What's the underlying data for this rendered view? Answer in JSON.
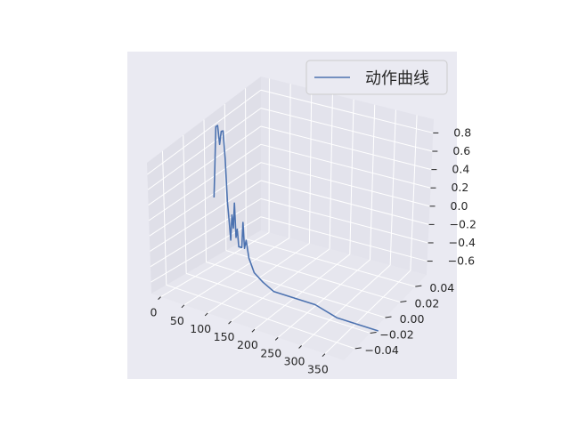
{
  "chart_data": {
    "type": "line",
    "projection": "3d",
    "series": [
      {
        "name": "动作曲线",
        "color": "#4c72b0",
        "points": [
          [
            0,
            0.0,
            0.05
          ],
          [
            3,
            0.0,
            0.45
          ],
          [
            6,
            0.0,
            0.9
          ],
          [
            10,
            0.0,
            0.92
          ],
          [
            14,
            0.0,
            0.7
          ],
          [
            18,
            0.0,
            0.86
          ],
          [
            22,
            0.0,
            0.87
          ],
          [
            26,
            0.0,
            0.55
          ],
          [
            30,
            0.0,
            0.05
          ],
          [
            34,
            0.0,
            -0.2
          ],
          [
            37,
            0.0,
            -0.4
          ],
          [
            40,
            0.0,
            -0.1
          ],
          [
            43,
            0.0,
            -0.25
          ],
          [
            46,
            0.0,
            0.05
          ],
          [
            49,
            0.0,
            -0.35
          ],
          [
            52,
            0.0,
            -0.25
          ],
          [
            55,
            0.0,
            -0.45
          ],
          [
            58,
            0.0,
            -0.45
          ],
          [
            62,
            0.0,
            -0.45
          ],
          [
            65,
            0.0,
            -0.15
          ],
          [
            68,
            0.0,
            -0.45
          ],
          [
            72,
            0.0,
            -0.35
          ],
          [
            78,
            0.0,
            -0.55
          ],
          [
            90,
            0.0,
            -0.7
          ],
          [
            110,
            0.0,
            -0.78
          ],
          [
            135,
            0.0,
            -0.85
          ],
          [
            180,
            0.0,
            -0.85
          ],
          [
            230,
            0.0,
            -0.85
          ],
          [
            280,
            0.0,
            -0.92
          ],
          [
            330,
            0.0,
            -0.92
          ],
          [
            375,
            0.0,
            -0.92
          ]
        ]
      }
    ],
    "x_ticks": [
      "0",
      "50",
      "100",
      "150",
      "200",
      "250",
      "300",
      "350"
    ],
    "y_ticks": [
      "−0.04",
      "−0.02",
      "0.00",
      "0.02",
      "0.04"
    ],
    "z_ticks": [
      "−0.6",
      "−0.4",
      "−0.2",
      "0.0",
      "0.2",
      "0.4",
      "0.6",
      "0.8"
    ],
    "x_range": [
      -20,
      390
    ],
    "y_range": [
      -0.055,
      0.055
    ],
    "z_range": [
      -0.75,
      0.95
    ],
    "legend_position": "top-right",
    "grid": true,
    "background_color": "#eaeaf2",
    "grid_color": "#ffffff"
  }
}
